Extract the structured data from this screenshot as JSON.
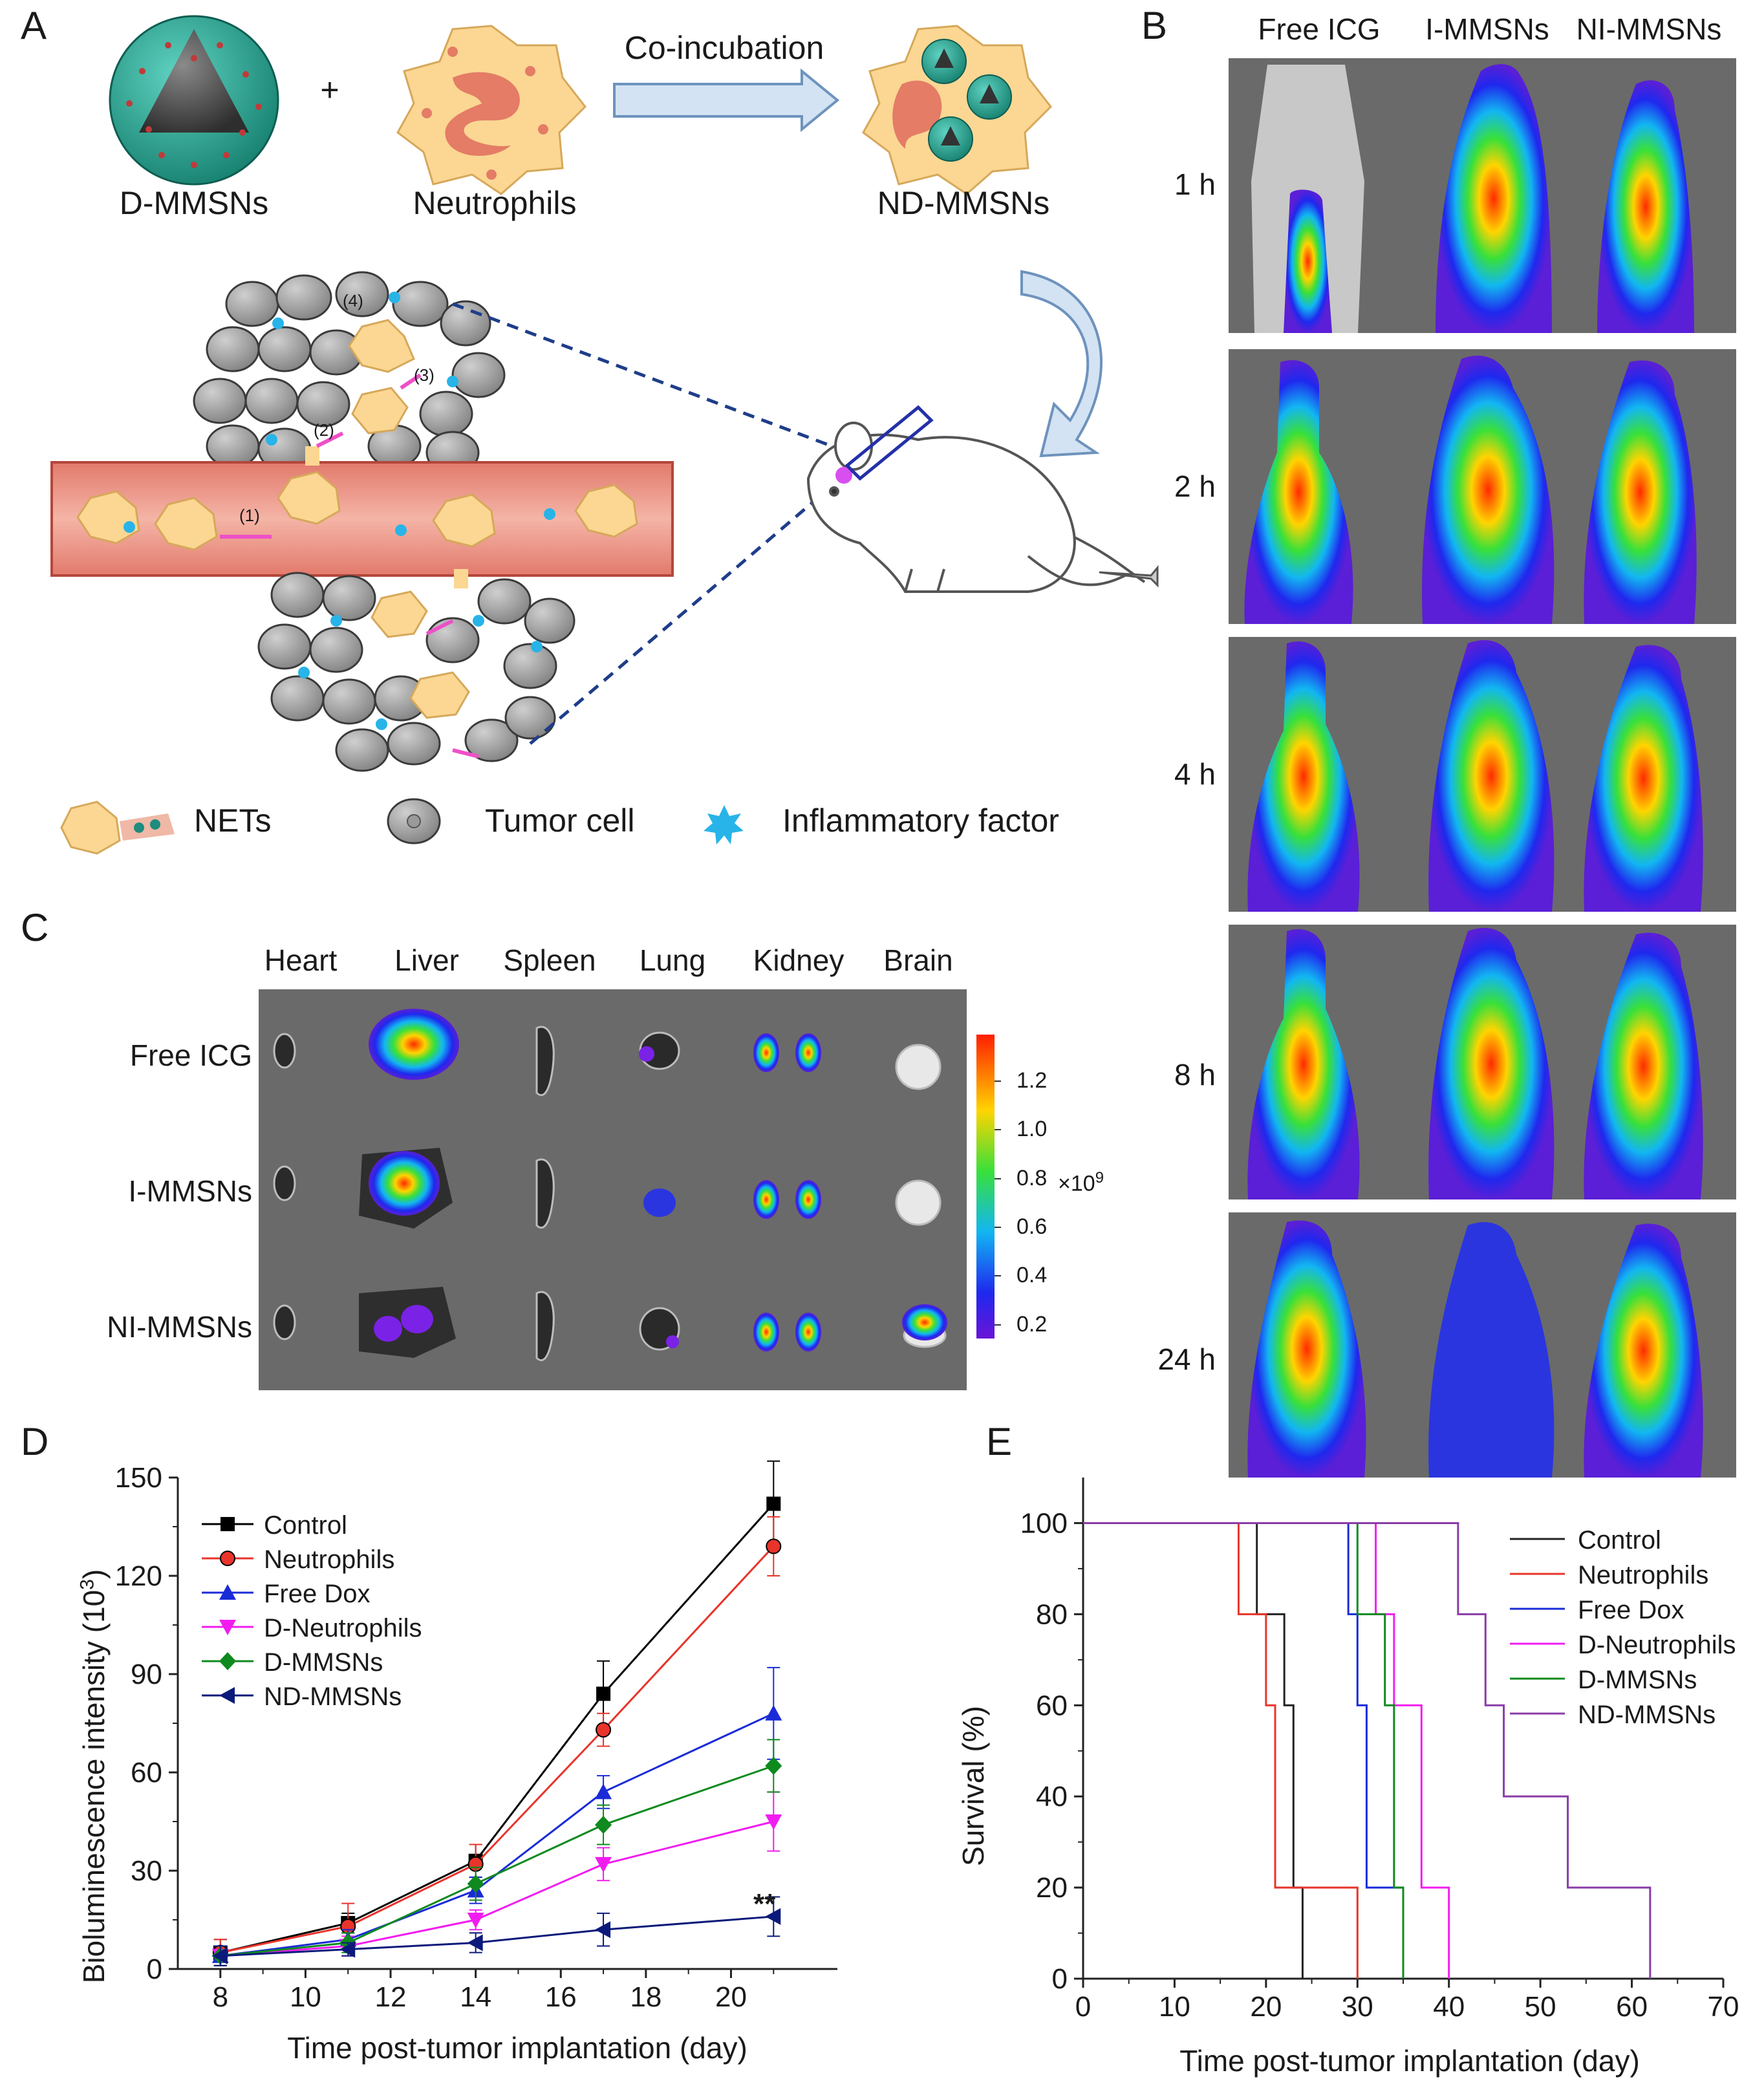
{
  "panels": {
    "a": "A",
    "b": "B",
    "c": "C",
    "d": "D",
    "e": "E"
  },
  "schematic": {
    "particle_label": "D-MMSNs",
    "plus": "+",
    "cell_label": "Neutrophils",
    "arrow_label": "Co-incubation",
    "product_label": "ND-MMSNs",
    "steps": [
      "(1)",
      "(2)",
      "(3)",
      "(4)"
    ],
    "legend": {
      "nets": "NETs",
      "tumor_cell": "Tumor cell",
      "inflammatory": "Inflammatory factor"
    }
  },
  "imaging_b": {
    "columns": [
      "Free ICG",
      "I-MMSNs",
      "NI-MMSNs"
    ],
    "timepoints": [
      "1 h",
      "2 h",
      "4 h",
      "8 h",
      "24 h"
    ]
  },
  "organs_c": {
    "columns": [
      "Heart",
      "Liver",
      "Spleen",
      "Lung",
      "Kidney",
      "Brain"
    ],
    "rows": [
      "Free ICG",
      "I-MMSNs",
      "NI-MMSNs"
    ],
    "colorbar_ticks": [
      "1.2",
      "1.0",
      "0.8",
      "0.6",
      "0.4",
      "0.2"
    ],
    "colorbar_unit_base": "×10",
    "colorbar_unit_exp": "9"
  },
  "chart_data": [
    {
      "type": "line",
      "panel": "D",
      "xlabel": "Time post-tumor implantation (day)",
      "ylabel_main": "Bioluminescence intensity (10",
      "ylabel_exp": "3",
      "ylabel_close": ")",
      "xlim": [
        7,
        22.5
      ],
      "ylim": [
        0,
        150
      ],
      "xticks": [
        8,
        10,
        12,
        14,
        16,
        18,
        20
      ],
      "yticks": [
        0,
        30,
        60,
        90,
        120,
        150
      ],
      "x": [
        8,
        11,
        14,
        17,
        21
      ],
      "annotation": "**",
      "series": [
        {
          "name": "Control",
          "color": "#000000",
          "marker": "square",
          "values": [
            5,
            14,
            33,
            84,
            142
          ],
          "errors": [
            4,
            3,
            5,
            10,
            13
          ]
        },
        {
          "name": "Neutrophils",
          "color": "#e8342b",
          "marker": "circle",
          "values": [
            5,
            13,
            32,
            73,
            129
          ],
          "errors": [
            4,
            7,
            6,
            5,
            9
          ]
        },
        {
          "name": "Free Dox",
          "color": "#1a2bd8",
          "marker": "triangle-up",
          "values": [
            4,
            9,
            24,
            54,
            78
          ],
          "errors": [
            3,
            3,
            4,
            5,
            14
          ]
        },
        {
          "name": "D-Neutrophils",
          "color": "#f21cf0",
          "marker": "triangle-down",
          "values": [
            4,
            7,
            15,
            32,
            45
          ],
          "errors": [
            3,
            3,
            3,
            5,
            9
          ]
        },
        {
          "name": "D-MMSNs",
          "color": "#0e8a1e",
          "marker": "diamond",
          "values": [
            4,
            8,
            26,
            44,
            62
          ],
          "errors": [
            3,
            3,
            5,
            6,
            8
          ]
        },
        {
          "name": "ND-MMSNs",
          "color": "#0b1a7a",
          "marker": "triangle-left",
          "values": [
            4,
            6,
            8,
            12,
            16
          ],
          "errors": [
            3,
            2,
            3,
            5,
            6
          ]
        }
      ]
    },
    {
      "type": "line",
      "panel": "E",
      "style": "step",
      "xlabel": "Time post-tumor implantation (day)",
      "ylabel": "Survival (%)",
      "xlim": [
        0,
        70
      ],
      "ylim": [
        0,
        110
      ],
      "xticks": [
        0,
        10,
        20,
        30,
        40,
        50,
        60,
        70
      ],
      "yticks": [
        0,
        20,
        40,
        60,
        80,
        100
      ],
      "series": [
        {
          "name": "Control",
          "color": "#222222",
          "points": [
            [
              0,
              100
            ],
            [
              19,
              100
            ],
            [
              19,
              80
            ],
            [
              22,
              80
            ],
            [
              22,
              60
            ],
            [
              23,
              60
            ],
            [
              23,
              40
            ],
            [
              23,
              20
            ],
            [
              24,
              20
            ],
            [
              24,
              0
            ]
          ]
        },
        {
          "name": "Neutrophils",
          "color": "#e8342b",
          "points": [
            [
              0,
              100
            ],
            [
              17,
              100
            ],
            [
              17,
              80
            ],
            [
              20,
              80
            ],
            [
              20,
              60
            ],
            [
              21,
              60
            ],
            [
              21,
              20
            ],
            [
              30,
              20
            ],
            [
              30,
              0
            ]
          ]
        },
        {
          "name": "Free Dox",
          "color": "#1a2bd8",
          "points": [
            [
              0,
              100
            ],
            [
              29,
              100
            ],
            [
              29,
              80
            ],
            [
              30,
              80
            ],
            [
              30,
              60
            ],
            [
              31,
              60
            ],
            [
              31,
              20
            ],
            [
              35,
              20
            ],
            [
              35,
              0
            ]
          ]
        },
        {
          "name": "D-Neutrophils",
          "color": "#f21cf0",
          "points": [
            [
              0,
              100
            ],
            [
              32,
              100
            ],
            [
              32,
              80
            ],
            [
              34,
              80
            ],
            [
              34,
              60
            ],
            [
              37,
              60
            ],
            [
              37,
              20
            ],
            [
              40,
              20
            ],
            [
              40,
              0
            ]
          ]
        },
        {
          "name": "D-MMSNs",
          "color": "#0e8a1e",
          "points": [
            [
              0,
              100
            ],
            [
              30,
              100
            ],
            [
              30,
              80
            ],
            [
              33,
              80
            ],
            [
              33,
              60
            ],
            [
              34,
              60
            ],
            [
              34,
              20
            ],
            [
              35,
              20
            ],
            [
              35,
              0
            ]
          ]
        },
        {
          "name": "ND-MMSNs",
          "color": "#8a3ba8",
          "points": [
            [
              0,
              100
            ],
            [
              41,
              100
            ],
            [
              41,
              80
            ],
            [
              44,
              80
            ],
            [
              44,
              60
            ],
            [
              46,
              60
            ],
            [
              46,
              40
            ],
            [
              53,
              40
            ],
            [
              53,
              20
            ],
            [
              62,
              20
            ],
            [
              62,
              0
            ]
          ]
        }
      ]
    }
  ]
}
